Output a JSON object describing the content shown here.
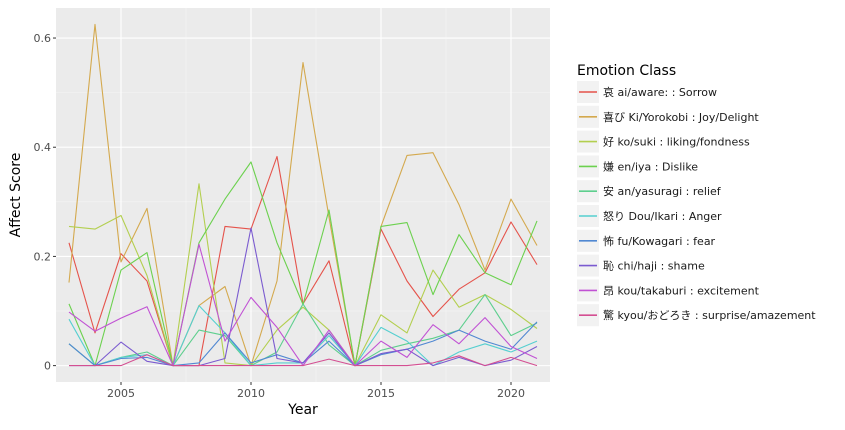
{
  "chart_data": {
    "type": "line",
    "xlabel": "Year",
    "ylabel": "Affect Score",
    "xlim": [
      2002.5,
      2021.5
    ],
    "ylim": [
      -0.03,
      0.655
    ],
    "x_ticks": [
      2005,
      2010,
      2015,
      2020
    ],
    "x_tick_labels": [
      "2005",
      "2010",
      "2015",
      "2020"
    ],
    "y_ticks": [
      0,
      0.2,
      0.4,
      0.6
    ],
    "y_tick_labels": [
      "0",
      "0.2",
      "0.4",
      "0.6"
    ],
    "grid": true,
    "legend_position": "right",
    "legend_title": "Emotion Class",
    "x": [
      2003,
      2004,
      2005,
      2006,
      2007,
      2008,
      2009,
      2010,
      2011,
      2012,
      2013,
      2014,
      2015,
      2016,
      2017,
      2018,
      2019,
      2020,
      2021
    ],
    "series": [
      {
        "name": "哀 ai/aware: : Sorrow",
        "color": "#E5534B",
        "values": [
          0.225,
          0.06,
          0.205,
          0.155,
          0,
          0,
          0.255,
          0.25,
          0.383,
          0.113,
          0.192,
          0,
          0.25,
          0.155,
          0.09,
          0.14,
          0.17,
          0.263,
          0.185
        ]
      },
      {
        "name": "喜び Ki/Yorokobi : Joy/Delight",
        "color": "#D4A94E",
        "values": [
          0.152,
          0.625,
          0.19,
          0.288,
          0,
          0.11,
          0.145,
          0,
          0.155,
          0.555,
          0.272,
          0,
          0.255,
          0.385,
          0.39,
          0.295,
          0.175,
          0.305,
          0.22
        ]
      },
      {
        "name": "好 ko/suki : liking/fondness",
        "color": "#B3CF4F",
        "values": [
          0.255,
          0.25,
          0.275,
          0.165,
          0,
          0.333,
          0.005,
          0,
          0.065,
          0.107,
          0.065,
          0,
          0.093,
          0.06,
          0.175,
          0.107,
          0.13,
          0.103,
          0.068
        ]
      },
      {
        "name": "嫌 en/iya : Dislike",
        "color": "#6CD14F",
        "values": [
          0.113,
          0,
          0.175,
          0.207,
          0,
          0.225,
          0.305,
          0.373,
          0.225,
          0.112,
          0.285,
          0,
          0.255,
          0.262,
          0.13,
          0.24,
          0.17,
          0.148,
          0.265
        ]
      },
      {
        "name": "安 an/yasuragi : relief",
        "color": "#5ECF8E",
        "values": [
          0.04,
          0,
          0.015,
          0.025,
          0,
          0.065,
          0.055,
          0,
          0.025,
          0.113,
          0.038,
          0,
          0.028,
          0.04,
          0.05,
          0.065,
          0.13,
          0.055,
          0.078
        ]
      },
      {
        "name": "怒り Dou/Ikari : Anger",
        "color": "#55CFD0",
        "values": [
          0.085,
          0,
          0.015,
          0.02,
          0,
          0.11,
          0.06,
          0,
          0.005,
          0.005,
          0.055,
          0,
          0.07,
          0.045,
          0,
          0.025,
          0.04,
          0.025,
          0.045
        ]
      },
      {
        "name": "怖 fu/Kowagari : fear",
        "color": "#5188D2",
        "values": [
          0.04,
          0,
          0.013,
          0.015,
          0,
          0.005,
          0.06,
          0.005,
          0.02,
          0.005,
          0.045,
          0,
          0.02,
          0.03,
          0.045,
          0.065,
          0.045,
          0.03,
          0.08
        ]
      },
      {
        "name": "恥 chi/haji : shame",
        "color": "#7B5BD0",
        "values": [
          0,
          0,
          0.043,
          0.008,
          0,
          0,
          0.013,
          0.252,
          0.013,
          0.005,
          0.06,
          0,
          0.022,
          0.03,
          0,
          0.015,
          0,
          0.01,
          0.035
        ]
      },
      {
        "name": "昂 kou/takaburi : excitement",
        "color": "#C152D4",
        "values": [
          0.098,
          0.063,
          0.087,
          0.108,
          0,
          0.222,
          0.045,
          0.125,
          0.07,
          0,
          0.065,
          0,
          0.045,
          0.015,
          0.075,
          0.04,
          0.088,
          0.035,
          0.013
        ]
      },
      {
        "name": "驚 kyou/おどろき : surprise/amazement",
        "color": "#D44F92",
        "values": [
          0,
          0,
          0,
          0.02,
          0,
          0,
          0,
          0,
          0,
          0,
          0.012,
          0,
          0,
          0,
          0.005,
          0.018,
          0,
          0.015,
          0
        ]
      }
    ]
  }
}
